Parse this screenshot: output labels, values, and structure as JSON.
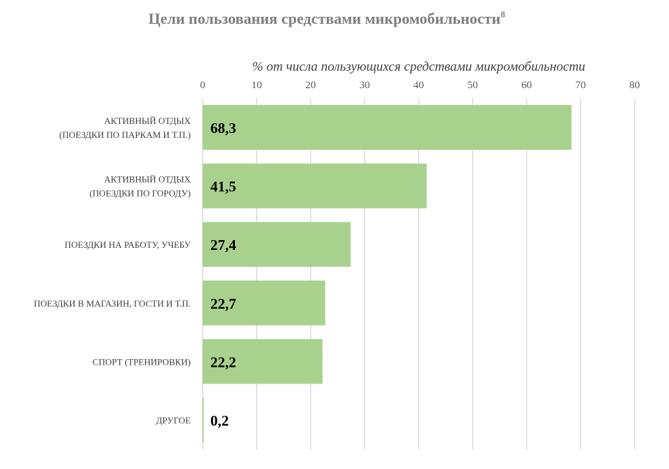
{
  "chart_data": {
    "type": "bar",
    "orientation": "horizontal",
    "title": "Цели пользования средствами микромобильности",
    "title_superscript": "8",
    "xlabel": "% от числа пользующихся средствами микромобильности",
    "ylabel": "",
    "xlim": [
      0,
      80
    ],
    "x_ticks": [
      "0",
      "10",
      "20",
      "30",
      "40",
      "50",
      "60",
      "70",
      "80"
    ],
    "x_axis_position": "top",
    "grid": true,
    "legend": "none",
    "bar_color": "#a9d18e",
    "categories": [
      [
        "АКТИВНЫЙ ОТДЫХ",
        "(ПОЕЗДКИ ПО ПАРКАМ И Т.П.)"
      ],
      [
        "АКТИВНЫЙ ОТДЫХ",
        "(ПОЕЗДКИ ПО ГОРОДУ)"
      ],
      [
        "ПОЕЗДКИ НА РАБОТУ, УЧЕБУ"
      ],
      [
        "ПОЕЗДКИ В МАГАЗИН, ГОСТИ И Т.П."
      ],
      [
        "СПОРТ (ТРЕНИРОВКИ)"
      ],
      [
        "ДРУГОЕ"
      ]
    ],
    "values": [
      68.3,
      41.5,
      27.4,
      22.7,
      22.2,
      0.2
    ],
    "data_labels": [
      "68,3",
      "41,5",
      "27,4",
      "22,7",
      "22,2",
      "0,2"
    ]
  }
}
